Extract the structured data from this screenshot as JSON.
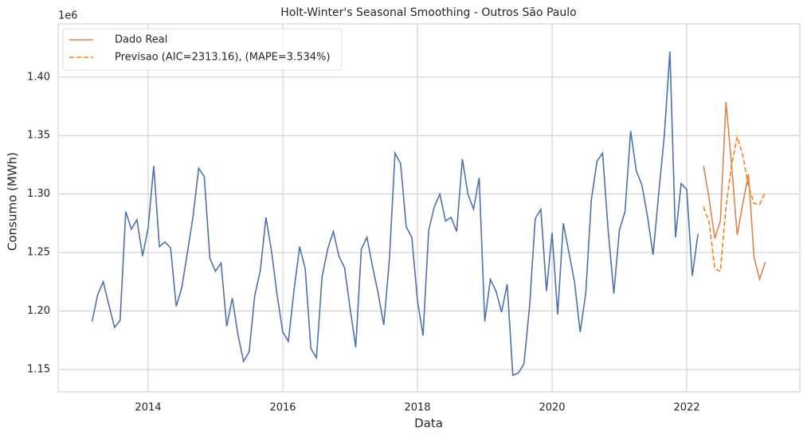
{
  "chart_data": {
    "type": "line",
    "title": "Holt-Winter's Seasonal Smoothing - Outros São Paulo",
    "x_label": "Data",
    "y_label": "Consumo (MWh)",
    "y_offset_label": "1e6",
    "xlim": [
      2012.663,
      2023.68
    ],
    "xticks": [
      2014,
      2016,
      2018,
      2020,
      2022
    ],
    "ylim": [
      1.1309,
      1.4455
    ],
    "yticks": [
      1.15,
      {
        "value": 1.2,
        "label": "1.20"
      },
      1.25,
      {
        "value": 1.3,
        "label": "1.30"
      },
      1.35,
      {
        "value": 1.4,
        "label": "1.40"
      }
    ],
    "grid": true,
    "legend": "upper left",
    "series": [
      {
        "color": "#4c72b0",
        "style": "solid",
        "x": [
          2013.167,
          2013.25,
          2013.333,
          2013.417,
          2013.5,
          2013.583,
          2013.667,
          2013.75,
          2013.833,
          2013.917,
          2014.0,
          2014.083,
          2014.167,
          2014.25,
          2014.333,
          2014.417,
          2014.5,
          2014.583,
          2014.667,
          2014.75,
          2014.833,
          2014.917,
          2015.0,
          2015.083,
          2015.167,
          2015.25,
          2015.333,
          2015.417,
          2015.5,
          2015.583,
          2015.667,
          2015.75,
          2015.833,
          2015.917,
          2016.0,
          2016.083,
          2016.167,
          2016.25,
          2016.333,
          2016.417,
          2016.5,
          2016.583,
          2016.667,
          2016.75,
          2016.833,
          2016.917,
          2017.0,
          2017.083,
          2017.167,
          2017.25,
          2017.333,
          2017.417,
          2017.5,
          2017.583,
          2017.667,
          2017.75,
          2017.833,
          2017.917,
          2018.0,
          2018.083,
          2018.167,
          2018.25,
          2018.333,
          2018.417,
          2018.5,
          2018.583,
          2018.667,
          2018.75,
          2018.833,
          2018.917,
          2019.0,
          2019.083,
          2019.167,
          2019.25,
          2019.333,
          2019.417,
          2019.5,
          2019.583,
          2019.667,
          2019.75,
          2019.833,
          2019.917,
          2020.0,
          2020.083,
          2020.167,
          2020.25,
          2020.333,
          2020.417,
          2020.5,
          2020.583,
          2020.667,
          2020.75,
          2020.833,
          2020.917,
          2021.0,
          2021.083,
          2021.167,
          2021.25,
          2021.333,
          2021.417,
          2021.5,
          2021.583,
          2021.667,
          2021.75,
          2021.833,
          2021.917,
          2022.0,
          2022.083,
          2022.167
        ],
        "values": [
          1.191,
          1.214,
          1.225,
          1.205,
          1.186,
          1.192,
          1.285,
          1.27,
          1.278,
          1.247,
          1.271,
          1.324,
          1.255,
          1.259,
          1.254,
          1.204,
          1.22,
          1.25,
          1.281,
          1.322,
          1.315,
          1.245,
          1.234,
          1.241,
          1.187,
          1.211,
          1.18,
          1.157,
          1.165,
          1.213,
          1.235,
          1.28,
          1.251,
          1.213,
          1.182,
          1.174,
          1.218,
          1.255,
          1.236,
          1.168,
          1.16,
          1.229,
          1.253,
          1.268,
          1.247,
          1.237,
          1.202,
          1.169,
          1.253,
          1.263,
          1.238,
          1.215,
          1.188,
          1.244,
          1.335,
          1.326,
          1.272,
          1.263,
          1.209,
          1.179,
          1.269,
          1.289,
          1.3,
          1.277,
          1.28,
          1.268,
          1.33,
          1.3,
          1.287,
          1.314,
          1.191,
          1.227,
          1.217,
          1.199,
          1.223,
          1.145,
          1.147,
          1.155,
          1.205,
          1.279,
          1.287,
          1.217,
          1.267,
          1.197,
          1.275,
          1.25,
          1.225,
          1.182,
          1.215,
          1.295,
          1.328,
          1.335,
          1.269,
          1.215,
          1.269,
          1.285,
          1.354,
          1.32,
          1.308,
          1.281,
          1.248,
          1.3,
          1.35,
          1.422,
          1.263,
          1.309,
          1.304,
          1.23,
          1.266
        ]
      },
      {
        "name": "Dado Real",
        "color": "#dd8452",
        "style": "solid",
        "x": [
          2022.25,
          2022.333,
          2022.417,
          2022.5,
          2022.583,
          2022.667,
          2022.75,
          2022.833,
          2022.917,
          2023.0,
          2023.083,
          2023.167
        ],
        "values": [
          1.324,
          1.296,
          1.262,
          1.277,
          1.379,
          1.324,
          1.265,
          1.292,
          1.317,
          1.246,
          1.227,
          1.242
        ]
      },
      {
        "name": "Previsao (AIC=2313.16), (MAPE=3.534%)",
        "color": "#ff7f0e",
        "style": "dashed",
        "x": [
          2022.25,
          2022.333,
          2022.417,
          2022.5,
          2022.583,
          2022.667,
          2022.75,
          2022.833,
          2022.917,
          2023.0,
          2023.083,
          2023.167
        ],
        "values": [
          1.289,
          1.276,
          1.236,
          1.234,
          1.289,
          1.325,
          1.349,
          1.333,
          1.307,
          1.292,
          1.291,
          1.302
        ]
      }
    ]
  }
}
